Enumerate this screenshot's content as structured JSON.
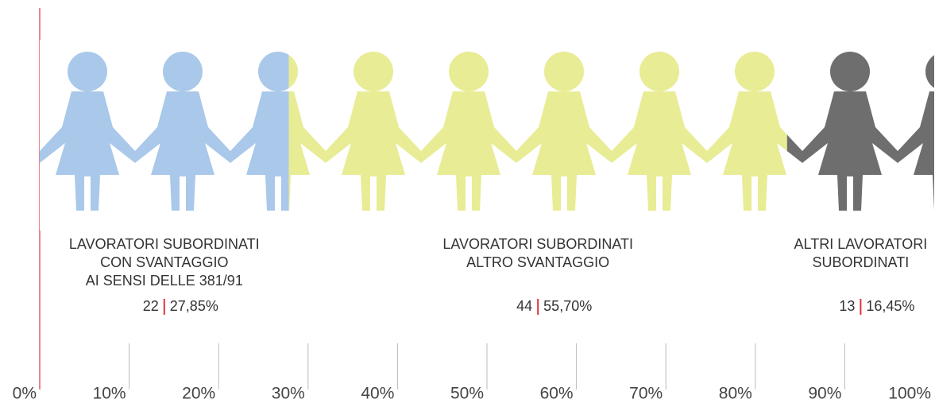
{
  "chart_data": {
    "type": "bar",
    "orientation": "horizontal",
    "stacked": true,
    "categories": [
      [
        "LAVORATORI SUBORDINATI",
        "CON SVANTAGGIO",
        "AI SENSI DELLE 381/91"
      ],
      [
        "LAVORATORI SUBORDINATI",
        "ALTRO SVANTAGGIO"
      ],
      [
        "ALTRI LAVORATORI",
        "SUBORDINATI"
      ]
    ],
    "counts": [
      22,
      44,
      13
    ],
    "values": [
      27.85,
      55.7,
      16.45
    ],
    "value_labels": [
      "27,85%",
      "55,70%",
      "16,45%"
    ],
    "colors": [
      "#a9c8ea",
      "#e8ec94",
      "#6e6e6e"
    ],
    "xlim": [
      0,
      100
    ],
    "xticks": [
      {
        "value": 0,
        "label": "0%"
      },
      {
        "value": 10,
        "label": "10%"
      },
      {
        "value": 20,
        "label": "20%"
      },
      {
        "value": 30,
        "label": "30%"
      },
      {
        "value": 40,
        "label": "40%"
      },
      {
        "value": 50,
        "label": "50%"
      },
      {
        "value": 60,
        "label": "60%"
      },
      {
        "value": 70,
        "label": "70%"
      },
      {
        "value": 80,
        "label": "80%"
      },
      {
        "value": 90,
        "label": "90%"
      },
      {
        "value": 100,
        "label": "100%"
      }
    ],
    "grid": true
  }
}
